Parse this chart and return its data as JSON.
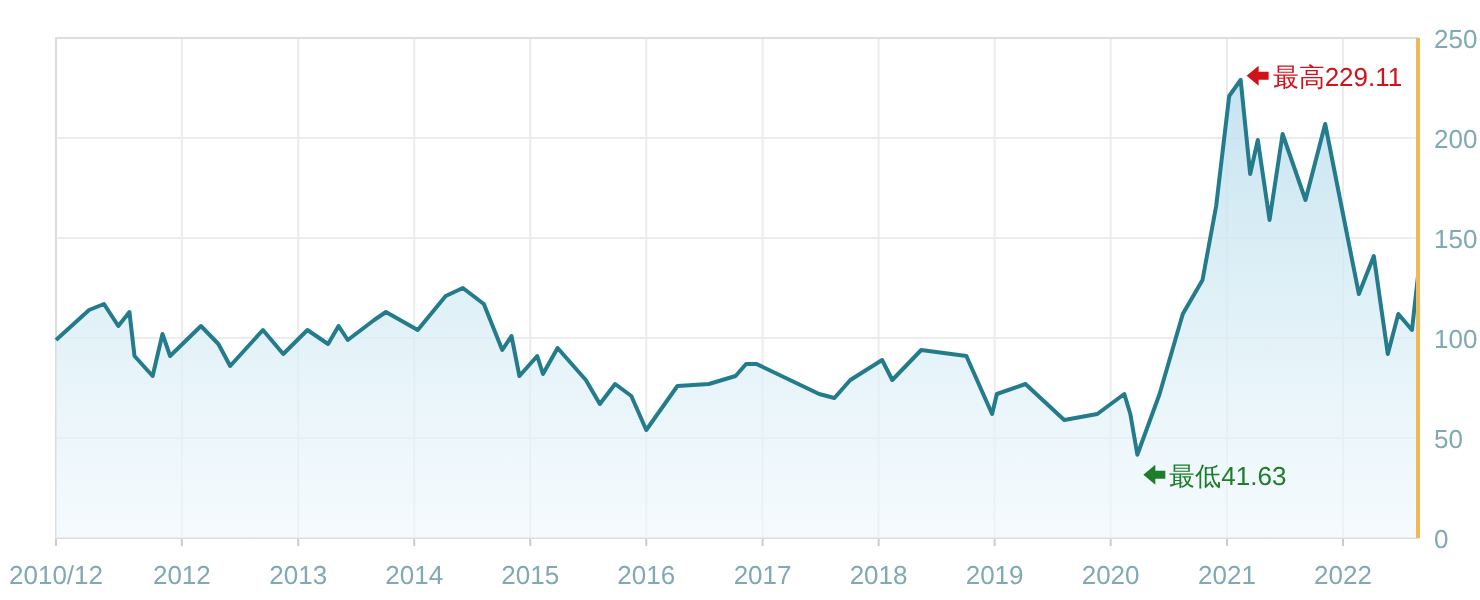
{
  "chart_data": {
    "type": "area",
    "x": [
      "2010-12-01",
      "2011-03-15",
      "2011-05-01",
      "2011-06-15",
      "2011-07-20",
      "2011-08-05",
      "2011-10-01",
      "2011-11-01",
      "2011-11-25",
      "2012-03-01",
      "2012-04-25",
      "2012-06-01",
      "2012-09-12",
      "2012-11-15",
      "2013-01-30",
      "2013-04-05",
      "2013-05-08",
      "2013-06-06",
      "2013-08-28",
      "2013-10-04",
      "2014-01-12",
      "2014-04-10",
      "2014-06-03",
      "2014-08-08",
      "2014-10-05",
      "2014-11-03",
      "2014-11-28",
      "2015-01-23",
      "2015-02-10",
      "2015-03-28",
      "2015-06-25",
      "2015-08-08",
      "2015-09-25",
      "2015-11-15",
      "2016-01-01",
      "2016-04-08",
      "2016-07-16",
      "2016-10-08",
      "2016-11-10",
      "2016-12-13",
      "2017-06-28",
      "2017-08-15",
      "2017-10-04",
      "2018-01-12",
      "2018-02-13",
      "2018-05-15",
      "2018-10-04",
      "2018-12-24",
      "2019-01-08",
      "2019-04-08",
      "2019-08-08",
      "2019-11-20",
      "2020-02-13",
      "2020-03-03",
      "2020-03-25",
      "2020-06-03",
      "2020-08-15",
      "2020-10-16",
      "2020-11-28",
      "2021-01-08",
      "2021-02-13",
      "2021-03-15",
      "2021-04-08",
      "2021-05-15",
      "2021-06-25",
      "2021-09-05",
      "2021-11-06",
      "2022-01-01",
      "2022-02-20",
      "2022-04-08",
      "2022-05-22",
      "2022-06-24",
      "2022-08-06",
      "2022-08-25"
    ],
    "series": [
      {
        "color": "#237b8c",
        "values": [
          99,
          114,
          117,
          106,
          113,
          91,
          81,
          102,
          91,
          106,
          97,
          86,
          104,
          92,
          104,
          97,
          106,
          99,
          109,
          113,
          104,
          121,
          125,
          117,
          94,
          101,
          81,
          91,
          82,
          95,
          79,
          67,
          77,
          71,
          54,
          76,
          77,
          81,
          87,
          87,
          72,
          70,
          79,
          89,
          79,
          94,
          91,
          62,
          72,
          77,
          59,
          62,
          72,
          62,
          41.63,
          72,
          112,
          129,
          166,
          221,
          229.11,
          182,
          199,
          159,
          202,
          169,
          207,
          162,
          122,
          141,
          92,
          112,
          104,
          131
        ]
      }
    ],
    "xlim": [
      "2010-12-01",
      "2022-08-25"
    ],
    "xticks": [
      {
        "value": "2010-12-01",
        "label": "2010/12"
      },
      {
        "value": "2012-01-01",
        "label": "2012"
      },
      {
        "value": "2013-01-01",
        "label": "2013"
      },
      {
        "value": "2014-01-01",
        "label": "2014"
      },
      {
        "value": "2015-01-01",
        "label": "2015"
      },
      {
        "value": "2016-01-01",
        "label": "2016"
      },
      {
        "value": "2017-01-01",
        "label": "2017"
      },
      {
        "value": "2018-01-01",
        "label": "2018"
      },
      {
        "value": "2019-01-01",
        "label": "2019"
      },
      {
        "value": "2020-01-01",
        "label": "2020"
      },
      {
        "value": "2021-01-01",
        "label": "2021"
      },
      {
        "value": "2022-01-01",
        "label": "2022"
      }
    ],
    "ylim": [
      0,
      250
    ],
    "yticks": [
      0,
      50,
      100,
      150,
      200,
      250
    ],
    "grid": true,
    "annotations": [
      {
        "text": "最高229.11",
        "x": "2021-02-13",
        "y": 229.11
      },
      {
        "text": "最低41.63",
        "x": "2020-03-25",
        "y": 41.63
      }
    ]
  }
}
